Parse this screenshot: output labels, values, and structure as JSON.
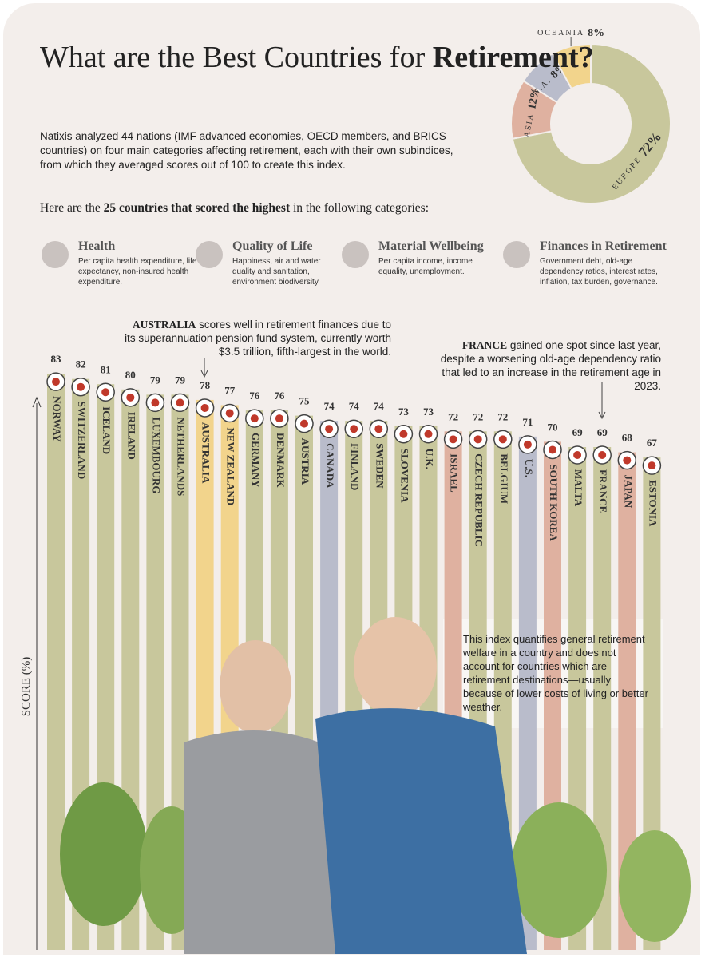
{
  "header": {
    "title_plain": "What are the Best Countries for",
    "title_bold": "Retirement?",
    "intro": "Natixis analyzed 44 nations (IMF advanced economies, OECD members, and BRICS countries) on four main categories affecting retirement, each with their own subindices, from which they averaged scores out of 100 to create this index.",
    "lead_pre": "Here are the",
    "lead_bold": "25 countries that scored the highest",
    "lead_post": "in the following categories:"
  },
  "categories_info": [
    {
      "name": "Health",
      "text": "Per capita health expenditure, life expectancy, non-insured health expenditure."
    },
    {
      "name": "Quality of Life",
      "text": "Happiness, air and water quality and sanitation, environment biodiversity."
    },
    {
      "name": "Material Wellbeing",
      "text": "Per capita income, income equality, unemployment."
    },
    {
      "name": "Finances in Retirement",
      "text": "Government debt, old-age dependency ratios, interest rates, inflation, tax burden, governance."
    }
  ],
  "annotations": [
    {
      "bold": "AUSTRALIA",
      "text": "scores well in retirement finances due to its superannuation pension fund system, currently worth $3.5 trillion, fifth-largest in the world."
    },
    {
      "bold": "FRANCE",
      "text": "gained one spot since last year, despite a worsening old-age dependency ratio that led to an increase in the retirement age in 2023."
    }
  ],
  "note": "This index quantifies general retirement welfare in a country and does not account for countries which are retirement destinations—usually because of lower costs of living or better weather.",
  "chart_data": [
    {
      "type": "bar",
      "y_label": "SCORE (%)",
      "categories": [
        "NORWAY",
        "SWITZERLAND",
        "ICELAND",
        "IRELAND",
        "LUXEMBOURG",
        "NETHERLANDS",
        "AUSTRALIA",
        "NEW ZEALAND",
        "GERMANY",
        "DENMARK",
        "AUSTRIA",
        "CANADA",
        "FINLAND",
        "SWEDEN",
        "SLOVENIA",
        "U.K.",
        "ISRAEL",
        "CZECH REPUBLIC",
        "BELGIUM",
        "U.S.",
        "SOUTH KOREA",
        "MALTA",
        "FRANCE",
        "JAPAN",
        "ESTONIA"
      ],
      "values": [
        83,
        82,
        81,
        80,
        79,
        79,
        78,
        77,
        76,
        76,
        75,
        74,
        74,
        74,
        73,
        73,
        72,
        72,
        72,
        71,
        70,
        69,
        69,
        68,
        67
      ],
      "colors": [
        "#c8c79c",
        "#c8c79c",
        "#c8c79c",
        "#c8c79c",
        "#c8c79c",
        "#c8c79c",
        "#f2d48c",
        "#f2d48c",
        "#c8c79c",
        "#c8c79c",
        "#c8c79c",
        "#b9bccb",
        "#c8c79c",
        "#c8c79c",
        "#c8c79c",
        "#c8c79c",
        "#dfb1a0",
        "#c8c79c",
        "#c8c79c",
        "#b9bccb",
        "#dfb1a0",
        "#c8c79c",
        "#c8c79c",
        "#dfb1a0",
        "#c8c79c"
      ],
      "ylim": [
        -27,
        85
      ]
    },
    {
      "type": "pie",
      "categories": [
        "EUROPE",
        "ASIA",
        "N.A.",
        "OCEANIA"
      ],
      "values": [
        72,
        12,
        8,
        8
      ],
      "value_labels": [
        "72%",
        "12%",
        "8%",
        "8%"
      ],
      "colors": [
        "#c8c79c",
        "#dfb1a0",
        "#b9bccb",
        "#f2d48c"
      ]
    }
  ]
}
